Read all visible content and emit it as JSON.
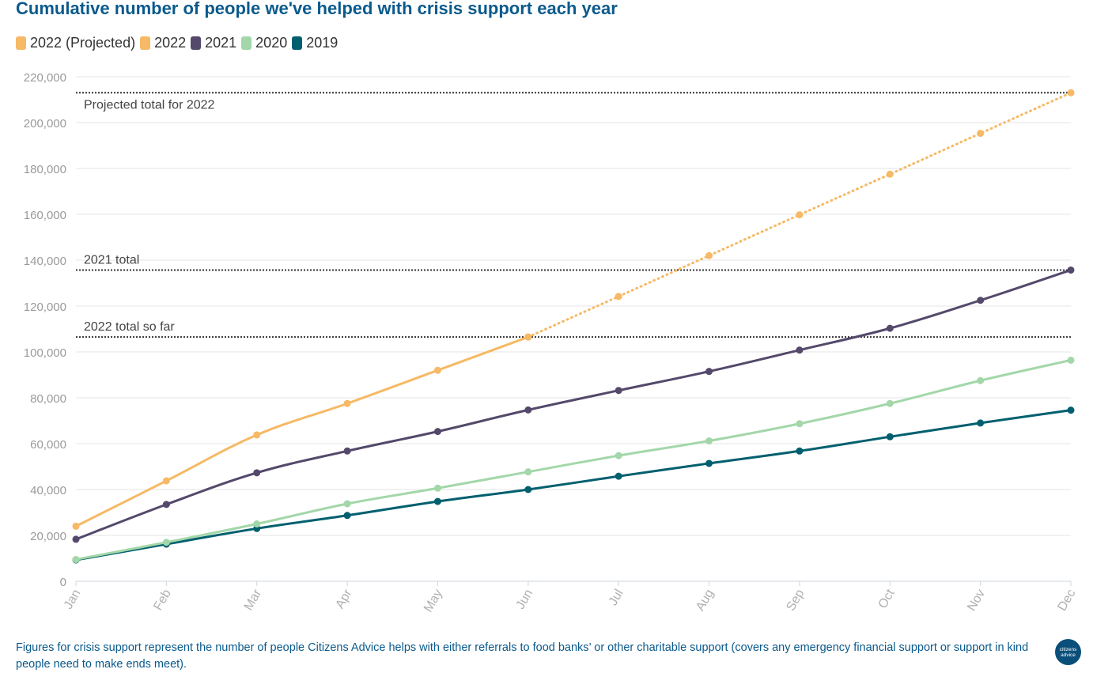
{
  "title": "Cumulative number of people we've helped with crisis support each year",
  "legend": [
    {
      "label": "2022 (Projected)",
      "color": "#f6b965"
    },
    {
      "label": "2022",
      "color": "#f6b965"
    },
    {
      "label": "2021",
      "color": "#54496b"
    },
    {
      "label": "2020",
      "color": "#a3d7a9"
    },
    {
      "label": "2019",
      "color": "#005f6e"
    }
  ],
  "footnote": "Figures for crisis support represent the number of people Citizens Advice helps with either referrals to food banks’ or other charitable support (covers any emergency financial support or support in kind people need to make ends meet).",
  "logo": {
    "line1": "citizens",
    "line2": "advice"
  },
  "chart_data": {
    "type": "line",
    "categories": [
      "Jan",
      "Feb",
      "Mar",
      "Apr",
      "May",
      "Jun",
      "Jul",
      "Aug",
      "Sep",
      "Oct",
      "Nov",
      "Dec"
    ],
    "ylim": [
      0,
      220000
    ],
    "yticks": [
      0,
      20000,
      40000,
      60000,
      80000,
      100000,
      120000,
      140000,
      160000,
      180000,
      200000,
      220000
    ],
    "ytick_labels": [
      "0",
      "20,000",
      "40,000",
      "60,000",
      "80,000",
      "100,000",
      "120,000",
      "140,000",
      "160,000",
      "180,000",
      "200,000",
      "220,000"
    ],
    "grid": true,
    "legend_position": "top-left",
    "series": [
      {
        "name": "2022 (Projected)",
        "color": "#f6b965",
        "dashed": true,
        "values": [
          null,
          null,
          null,
          null,
          null,
          106500,
          124200,
          142000,
          159800,
          177500,
          195300,
          213000
        ]
      },
      {
        "name": "2022",
        "color": "#f6b965",
        "dashed": false,
        "values": [
          24000,
          43800,
          63800,
          77500,
          92000,
          106500,
          null,
          null,
          null,
          null,
          null,
          null
        ]
      },
      {
        "name": "2021",
        "color": "#54496b",
        "dashed": false,
        "values": [
          18300,
          33500,
          47300,
          56800,
          65300,
          74700,
          83200,
          91500,
          100800,
          110300,
          122500,
          135700
        ]
      },
      {
        "name": "2020",
        "color": "#a3d7a9",
        "dashed": false,
        "values": [
          9500,
          17000,
          25000,
          33800,
          40600,
          47700,
          54800,
          61200,
          68700,
          77500,
          87500,
          96400
        ]
      },
      {
        "name": "2019",
        "color": "#005f6e",
        "dashed": false,
        "values": [
          9300,
          16200,
          23000,
          28700,
          34800,
          40000,
          45800,
          51400,
          56800,
          63000,
          69000,
          74600
        ]
      }
    ],
    "reference_lines": [
      {
        "label": "Projected total for 2022",
        "value": 213000,
        "label_side": "below"
      },
      {
        "label": "2021 total",
        "value": 135700,
        "label_side": "above"
      },
      {
        "label": "2022 total so far",
        "value": 106500,
        "label_side": "above"
      }
    ]
  }
}
